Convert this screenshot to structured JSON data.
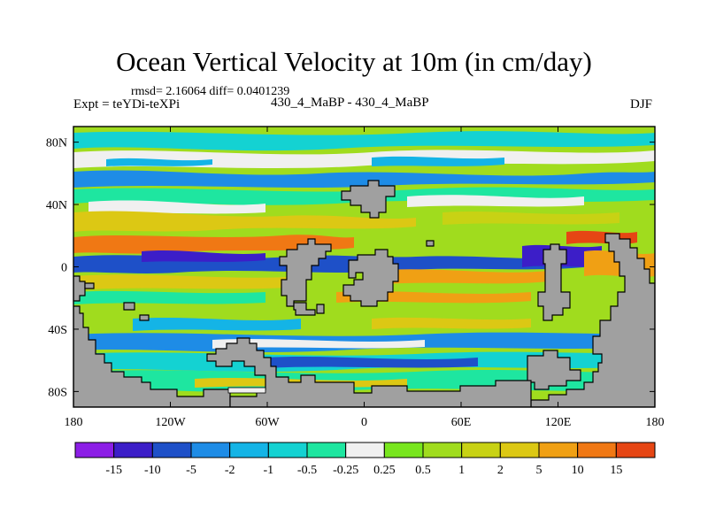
{
  "chart_data": {
    "type": "heatmap",
    "title": "Ocean Vertical Velocity at 10m (in cm/day)",
    "stats": "rmsd= 2.16064 diff= 0.0401239",
    "left_label": "Expt = teYDi-teXPi",
    "center_label": "430_4_MaBP - 430_4_MaBP",
    "right_label": "DJF",
    "x_ticks": [
      {
        "value": -180,
        "label": "180"
      },
      {
        "value": -120,
        "label": "120W"
      },
      {
        "value": -60,
        "label": "60W"
      },
      {
        "value": 0,
        "label": "0"
      },
      {
        "value": 60,
        "label": "60E"
      },
      {
        "value": 120,
        "label": "120E"
      },
      {
        "value": 180,
        "label": "180"
      }
    ],
    "y_ticks": [
      {
        "value": 80,
        "label": "80N"
      },
      {
        "value": 40,
        "label": "40N"
      },
      {
        "value": 0,
        "label": "0"
      },
      {
        "value": -40,
        "label": "40S"
      },
      {
        "value": -80,
        "label": "80S"
      }
    ],
    "xlim": [
      -180,
      180
    ],
    "ylim": [
      -90,
      90
    ],
    "colorbar": {
      "colors": [
        "#8c1ee6",
        "#3c1ec8",
        "#1e50c8",
        "#1e8ce6",
        "#14b4e6",
        "#14d2d2",
        "#1ee6a0",
        "#f0f0f0",
        "#78e61e",
        "#a0dc1e",
        "#c8d214",
        "#dcc814",
        "#f0a014",
        "#f07814",
        "#e64614"
      ],
      "labels": [
        "-15",
        "-10",
        "-5",
        "-2",
        "-1",
        "-0.5",
        "-0.25",
        "0.25",
        "0.5",
        "1",
        "2",
        "5",
        "10",
        "15"
      ]
    },
    "land_color": "#a0a0a0"
  }
}
